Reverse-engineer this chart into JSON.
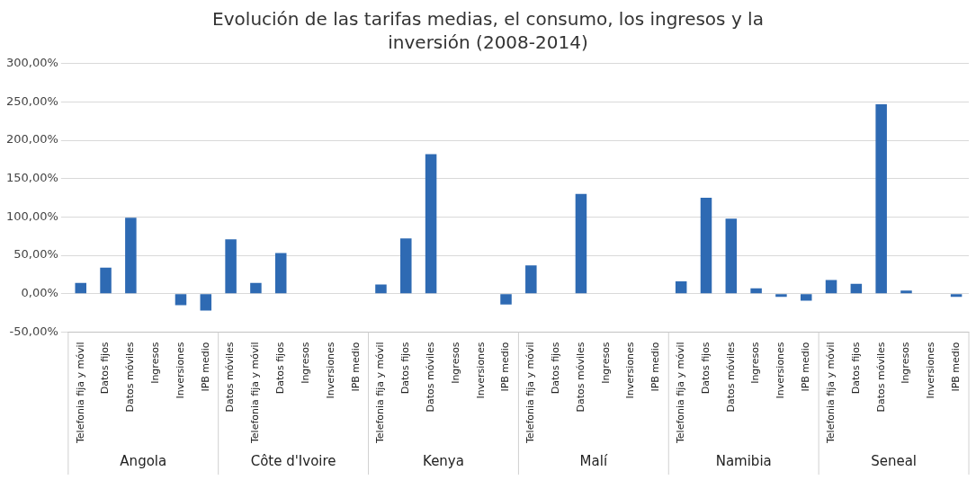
{
  "chart_data": {
    "type": "bar",
    "title": "Evolución de las tarifas medias, el consumo, los ingresos y la inversión (2008-2014)",
    "categories": [
      "Telefonia fija y móvil",
      "Datos fijos",
      "Datos móviles",
      "Ingresos",
      "Inversiones",
      "IPB medio",
      "Datos móviles",
      "Telefonia fija y móvil",
      "Datos fijos",
      "Ingresos",
      "Inversiones",
      "IPB medio",
      "Telefonia fija y móvil",
      "Datos fijos",
      "Datos móviles",
      "Ingresos",
      "Inversiones",
      "IPB medio",
      "Telefonia fija y móvil",
      "Datos fijos",
      "Datos móviles",
      "Ingresos",
      "Inversiones",
      "IPB medio",
      "Telefonia fija y móvil",
      "Datos fijos",
      "Datos móviles",
      "Ingresos",
      "Inversiones",
      "IPB medio",
      "Telefonia fija y móvil",
      "Datos fijos",
      "Datos móviles",
      "Ingresos",
      "Inversiones",
      "IPB medio"
    ],
    "values": [
      14,
      34,
      99,
      0,
      -15,
      -22,
      71,
      14,
      53,
      0,
      0,
      0,
      12,
      72,
      182,
      0,
      0,
      -14,
      37,
      0,
      130,
      0,
      0,
      0,
      16,
      125,
      98,
      7,
      -4,
      -9,
      18,
      13,
      247,
      4,
      null,
      -4
    ],
    "color": "#2e6ab3",
    "annotations": [
      "Angola",
      "Côte d'Ivoire",
      "Kenya",
      "Malí",
      "Namibia",
      "Seneal"
    ],
    "ylim": [
      -50,
      300
    ],
    "yticks": [
      {
        "value": -50,
        "label": "-50,00%"
      },
      {
        "value": 0,
        "label": "0,00%"
      },
      {
        "value": 50,
        "label": "50,00%"
      },
      {
        "value": 100,
        "label": "100,00%"
      },
      {
        "value": 150,
        "label": "150,00%"
      },
      {
        "value": 200,
        "label": "200,00%"
      },
      {
        "value": 250,
        "label": "250,00%"
      },
      {
        "value": 300,
        "label": "300,00%"
      }
    ],
    "grid": "y"
  }
}
